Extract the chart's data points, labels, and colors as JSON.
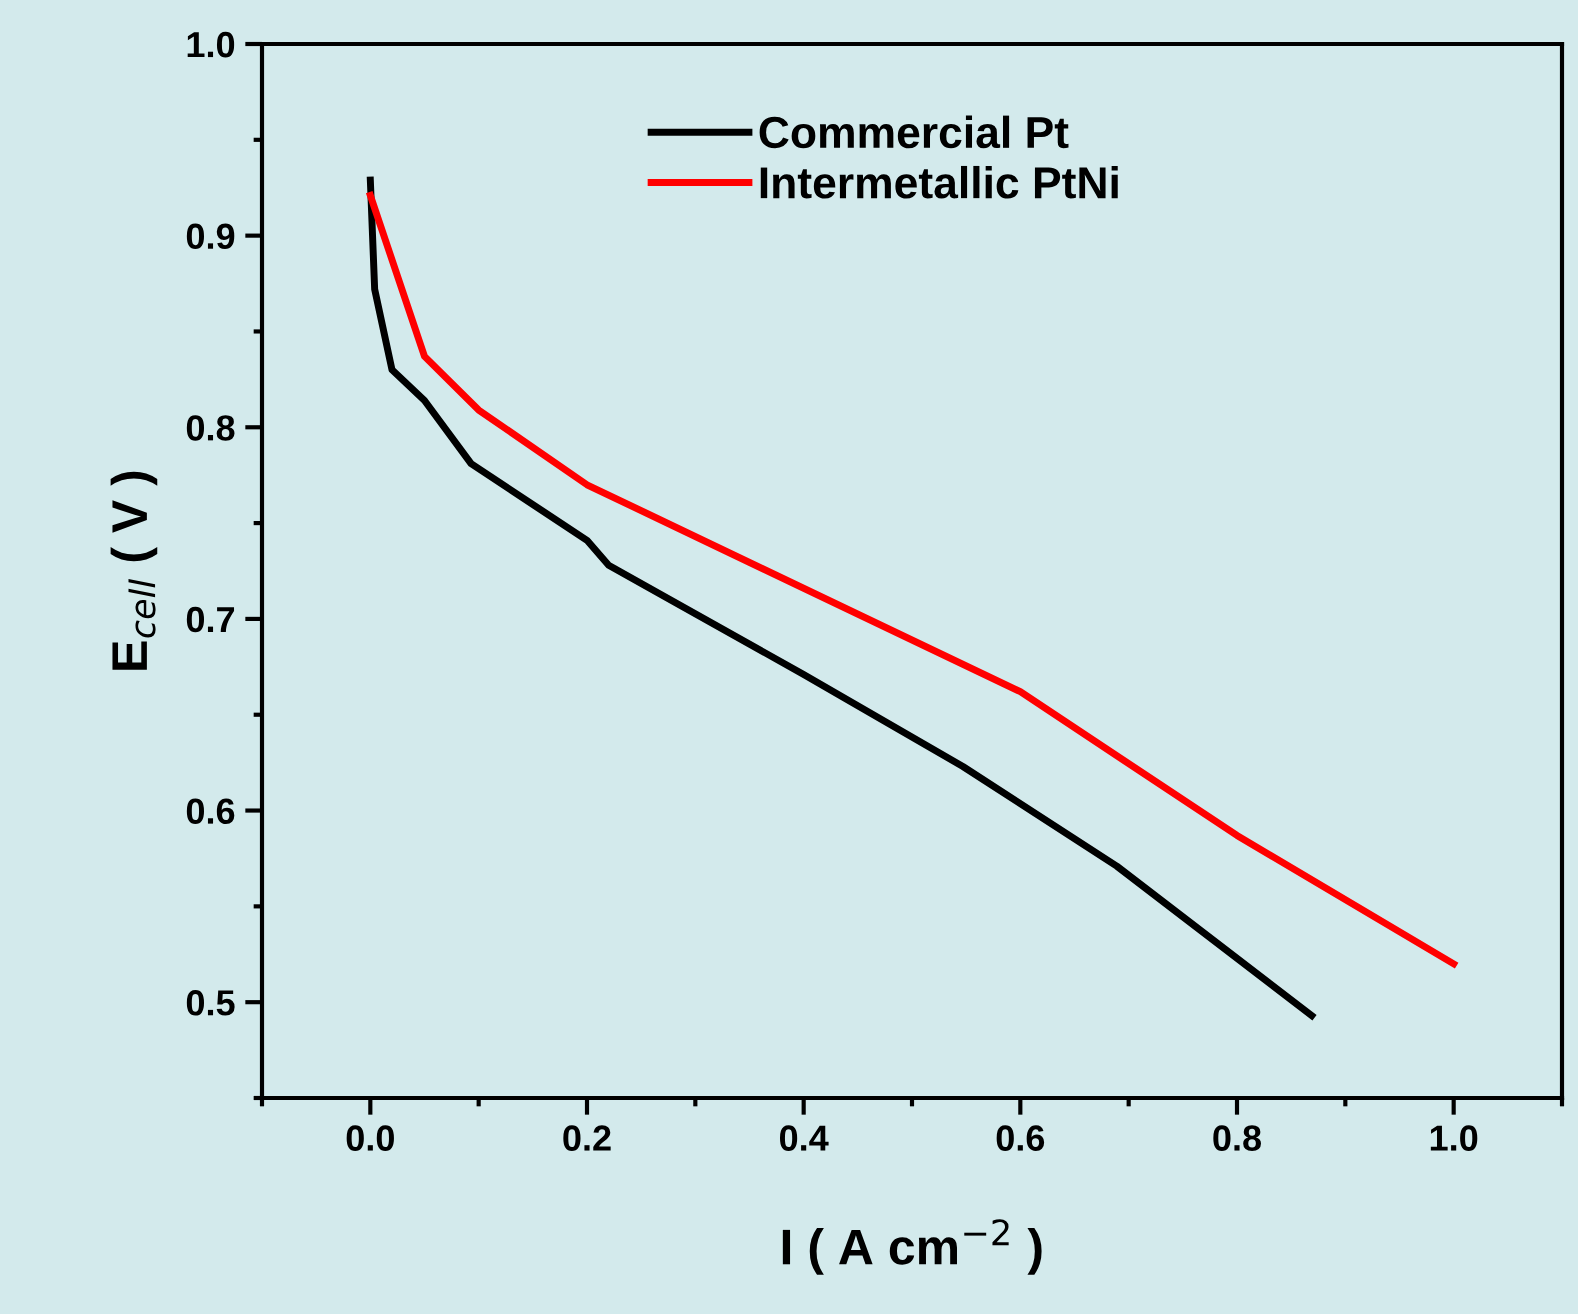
{
  "chart_data": {
    "type": "line",
    "xlabel": "I ( A cm$^{−2}$ )",
    "ylabel": "E$_{cell}$ ( V )",
    "xlim": [
      -0.1,
      1.1
    ],
    "ylim": [
      0.45,
      1.0
    ],
    "xticks": [
      {
        "value": 0,
        "label": "0.0"
      },
      0.2,
      0.4,
      0.6,
      0.8,
      {
        "value": 1,
        "label": "1.0"
      }
    ],
    "yticks": [
      0.5,
      0.6,
      0.7,
      0.8,
      0.9,
      {
        "value": 1,
        "label": "1.0"
      }
    ],
    "grid": false,
    "legend": "top",
    "marker": "none",
    "line_style": "solid",
    "series": [
      {
        "name": "Commercial Pt",
        "color": "#000000",
        "x": [
          0.0,
          0.004,
          0.02,
          0.05,
          0.093,
          0.2,
          0.22,
          0.4,
          0.547,
          0.689,
          0.869
        ],
        "values": [
          0.929,
          0.872,
          0.83,
          0.814,
          0.781,
          0.741,
          0.728,
          0.671,
          0.623,
          0.571,
          0.493
        ]
      },
      {
        "name": "Intermetallic PtNi",
        "color": "#ff0000",
        "x": [
          0.0,
          0.05,
          0.1,
          0.2,
          0.6,
          0.8,
          1.0
        ],
        "values": [
          0.921,
          0.837,
          0.809,
          0.77,
          0.662,
          0.587,
          0.52
        ]
      }
    ]
  }
}
